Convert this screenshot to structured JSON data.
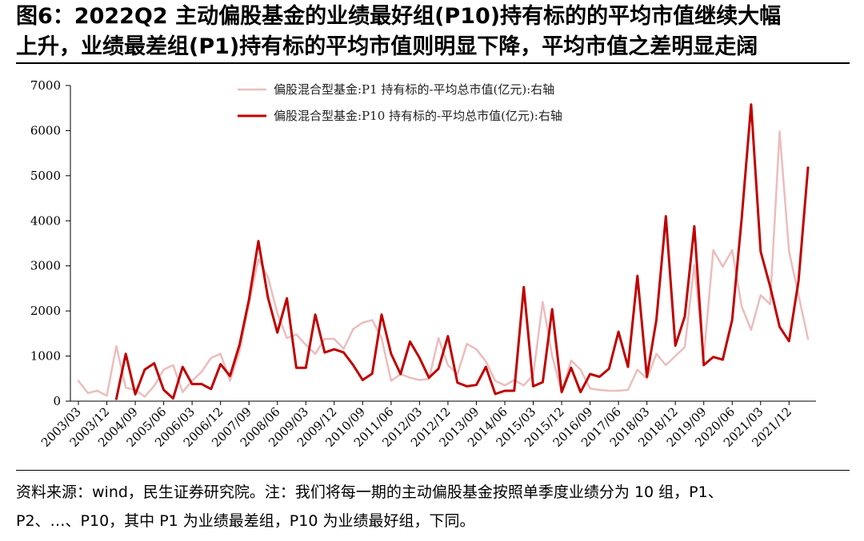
{
  "title": {
    "line1": "图6：2022Q2 主动偏股基金的业绩最好组(P10)持有标的的平均市值继续大幅",
    "line2": "上升，业绩最差组(P1)持有标的平均市值则明显下降，平均市值之差明显走阔"
  },
  "source": {
    "line1": "资料来源：wind，民生证券研究院。注：我们将每一期的主动偏股基金按照单季度业绩分为 10 组，P1、",
    "line2": "P2、…、P10，其中 P1 为业绩最差组，P10 为业绩最好组，下同。"
  },
  "chart_data": {
    "type": "line",
    "y_axis": {
      "ticks": [
        0,
        1000,
        2000,
        3000,
        4000,
        5000,
        6000,
        7000
      ],
      "ylim": [
        0,
        7000
      ]
    },
    "x_tick_labels": [
      "2003/03",
      "2003/12",
      "2004/09",
      "2005/06",
      "2006/03",
      "2006/12",
      "2007/09",
      "2008/06",
      "2009/03",
      "2009/12",
      "2010/09",
      "2011/06",
      "2012/03",
      "2012/12",
      "2013/09",
      "2014/06",
      "2015/03",
      "2015/12",
      "2016/09",
      "2017/06",
      "2018/03",
      "2018/12",
      "2019/09",
      "2020/06",
      "2021/03",
      "2021/12"
    ],
    "x": [
      "2003/03",
      "2003/06",
      "2003/09",
      "2003/12",
      "2004/03",
      "2004/06",
      "2004/09",
      "2004/12",
      "2005/03",
      "2005/06",
      "2005/09",
      "2005/12",
      "2006/03",
      "2006/06",
      "2006/09",
      "2006/12",
      "2007/03",
      "2007/06",
      "2007/09",
      "2007/12",
      "2008/03",
      "2008/06",
      "2008/09",
      "2008/12",
      "2009/03",
      "2009/06",
      "2009/09",
      "2009/12",
      "2010/03",
      "2010/06",
      "2010/09",
      "2010/12",
      "2011/03",
      "2011/06",
      "2011/09",
      "2011/12",
      "2012/03",
      "2012/06",
      "2012/09",
      "2012/12",
      "2013/03",
      "2013/06",
      "2013/09",
      "2013/12",
      "2014/03",
      "2014/06",
      "2014/09",
      "2014/12",
      "2015/03",
      "2015/06",
      "2015/09",
      "2015/12",
      "2016/03",
      "2016/06",
      "2016/09",
      "2016/12",
      "2017/03",
      "2017/06",
      "2017/09",
      "2017/12",
      "2018/03",
      "2018/06",
      "2018/09",
      "2018/12",
      "2019/03",
      "2019/06",
      "2019/09",
      "2019/12",
      "2020/03",
      "2020/06",
      "2020/09",
      "2020/12",
      "2021/03",
      "2021/06",
      "2021/09",
      "2021/12",
      "2022/03",
      "2022/06"
    ],
    "series": [
      {
        "name": "偏股混合型基金:P1 持有标的-平均总市值(亿元):右轴",
        "color": "#ebbdbd",
        "width": 2.5,
        "values": [
          450,
          180,
          230,
          120,
          1220,
          300,
          250,
          100,
          340,
          700,
          800,
          200,
          450,
          650,
          960,
          1050,
          450,
          1100,
          2150,
          3150,
          2750,
          1950,
          1400,
          1480,
          1250,
          1050,
          1380,
          1380,
          1160,
          1600,
          1740,
          1800,
          1400,
          450,
          600,
          520,
          470,
          490,
          1400,
          800,
          600,
          1270,
          1150,
          880,
          450,
          350,
          470,
          350,
          580,
          2200,
          1000,
          200,
          900,
          700,
          280,
          250,
          230,
          230,
          250,
          700,
          500,
          1050,
          800,
          1000,
          1200,
          3020,
          980,
          3350,
          2980,
          3350,
          2100,
          1580,
          2350,
          2150,
          5980,
          3320,
          2350,
          1380
        ]
      },
      {
        "name": "偏股混合型基金:P10 持有标的-平均总市值(亿元):右轴",
        "color": "#c00000",
        "width": 3,
        "values": [
          null,
          null,
          null,
          null,
          50,
          1050,
          150,
          700,
          840,
          250,
          60,
          760,
          380,
          380,
          270,
          820,
          560,
          1250,
          2250,
          3550,
          2300,
          1520,
          2280,
          740,
          740,
          1920,
          1080,
          1150,
          1080,
          800,
          470,
          610,
          1920,
          1050,
          600,
          1320,
          960,
          520,
          720,
          1440,
          410,
          330,
          360,
          760,
          160,
          230,
          230,
          2530,
          330,
          420,
          2040,
          200,
          740,
          200,
          600,
          540,
          720,
          1540,
          760,
          2780,
          540,
          1800,
          4100,
          1230,
          1880,
          3880,
          800,
          980,
          920,
          1800,
          4050,
          6580,
          3320,
          2550,
          1650,
          1330,
          2670,
          5180
        ]
      }
    ]
  }
}
